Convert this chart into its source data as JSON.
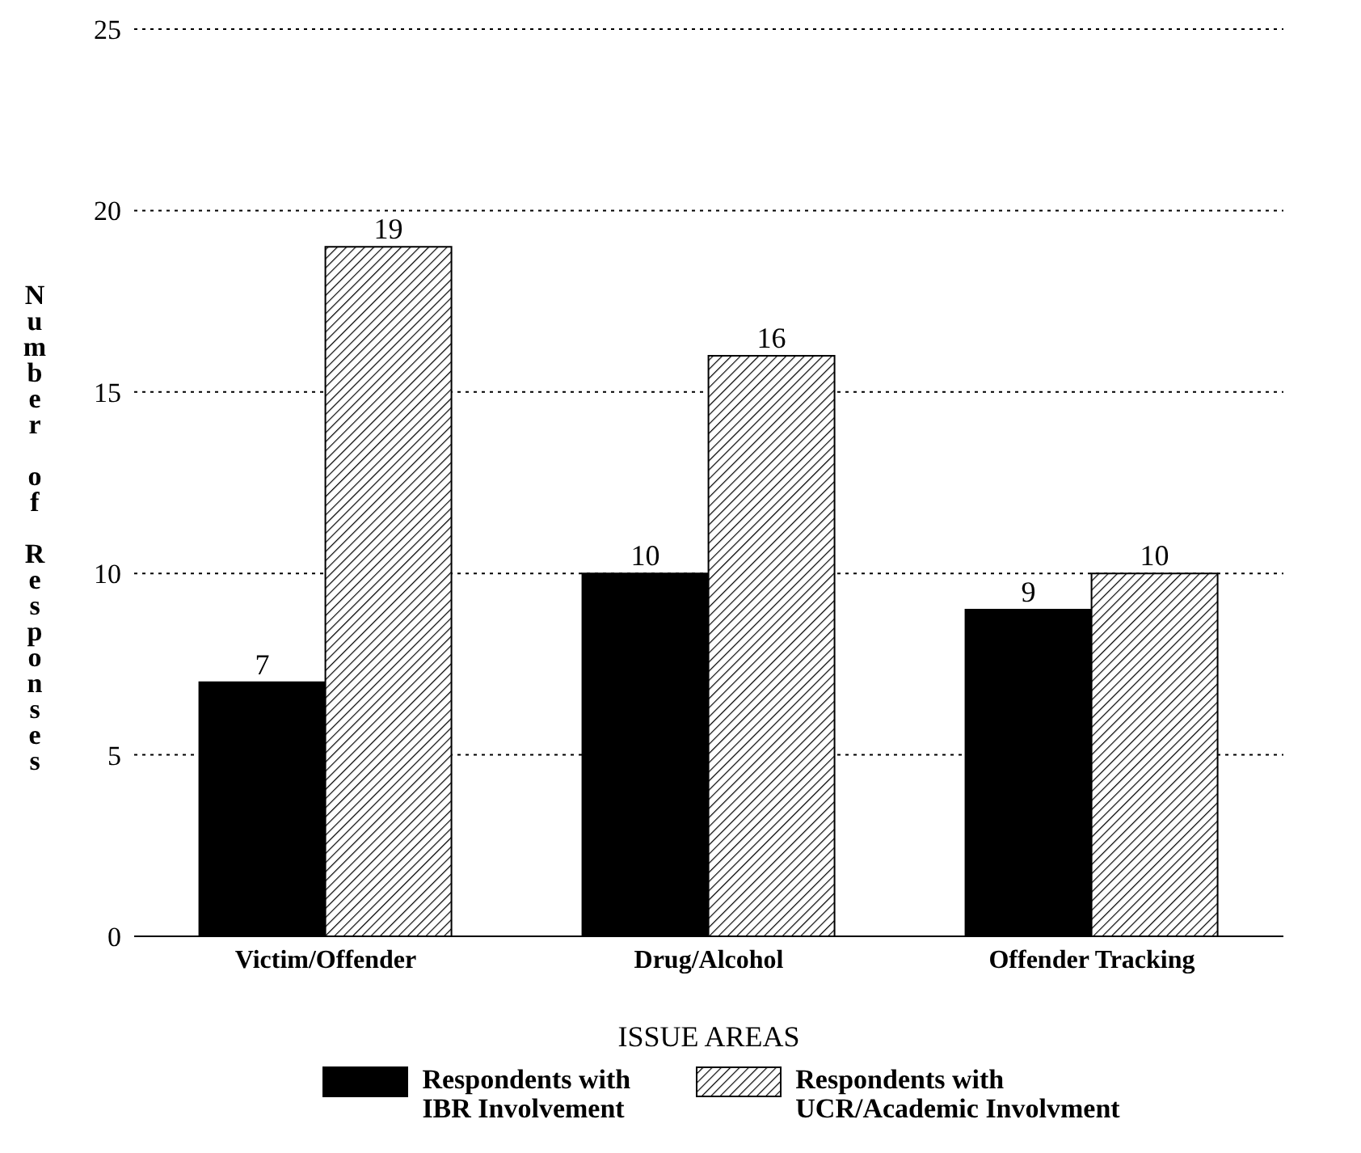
{
  "chart_data": {
    "type": "bar",
    "xlabel": "ISSUE AREAS",
    "ylabel": "Number of Responses",
    "categories": [
      "Victim/Offender",
      "Drug/Alcohol",
      "Offender Tracking"
    ],
    "series": [
      {
        "name": "Respondents with\nIBR Involvement",
        "color": "#000000",
        "values": [
          7,
          10,
          9
        ]
      },
      {
        "name": "Respondents with\nUCR/Academic Involvment",
        "color": "#000000",
        "values": [
          19,
          16,
          10
        ]
      }
    ],
    "ylim": [
      0,
      25
    ],
    "yticks": [
      0,
      5,
      10,
      15,
      20,
      25
    ],
    "grid": "y",
    "legend": "bottom",
    "data_labels": true
  }
}
